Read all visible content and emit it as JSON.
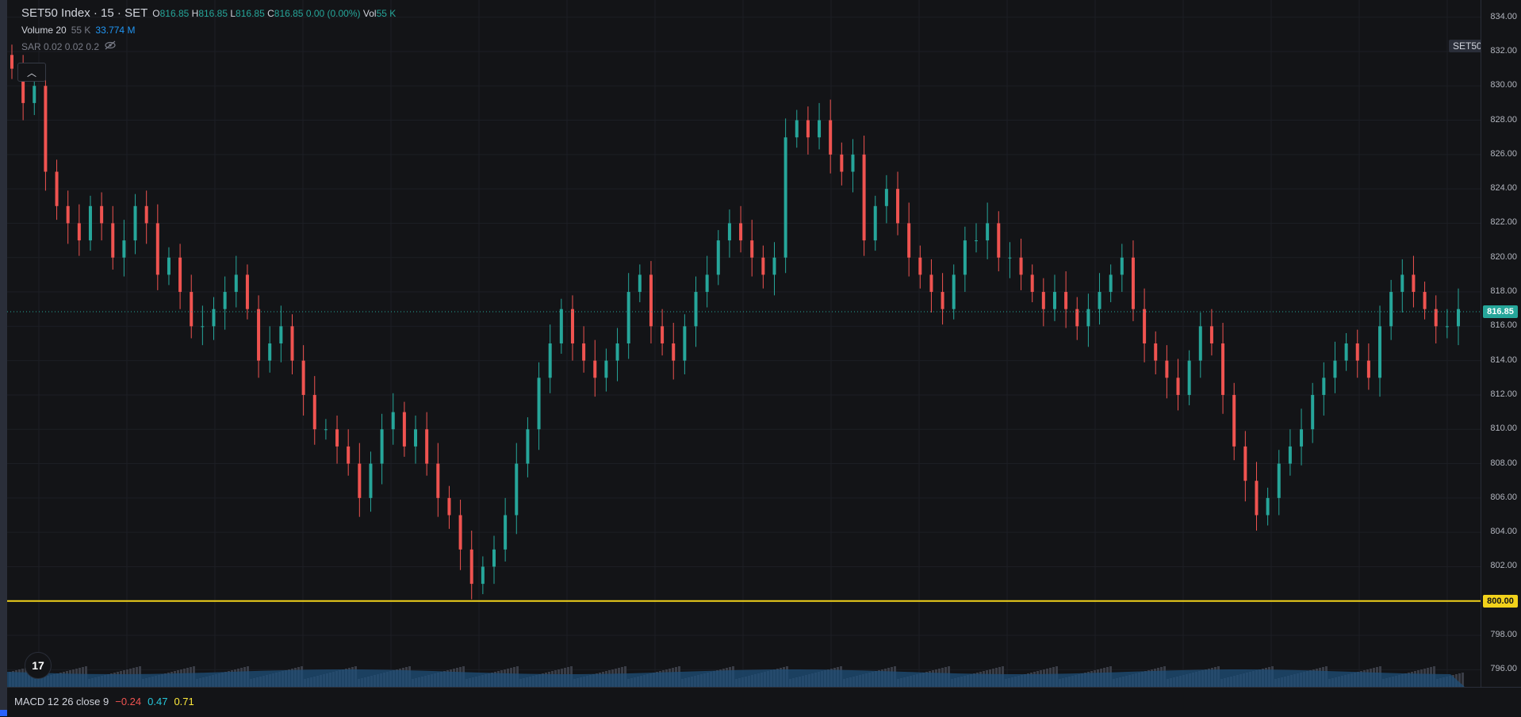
{
  "legend": {
    "title": "SET50 Index · 15 · SET",
    "o_label": "O",
    "o_value": "816.85",
    "h_label": "H",
    "h_value": "816.85",
    "l_label": "L",
    "l_value": "816.85",
    "c_label": "C",
    "c_value": "816.85",
    "change": "0.00 (0.00%)",
    "vol_label": "Vol",
    "vol_value": "55 K",
    "volume_name": "Volume 20",
    "volume_value1": "55 K",
    "volume_value2": "33.774 M",
    "sar_name": "SAR 0.02 0.02 0.2"
  },
  "symbol_badge": "SET50",
  "collapse_icon": "chevron-up-icon",
  "logo_text": "17",
  "price_axis": {
    "ticks": [
      "834.00",
      "832.00",
      "830.00",
      "828.00",
      "826.00",
      "824.00",
      "822.00",
      "820.00",
      "818.00",
      "816.00",
      "814.00",
      "812.00",
      "810.00",
      "808.00",
      "806.00",
      "804.00",
      "802.00",
      "800.00",
      "798.00",
      "796.00"
    ],
    "current_price": "816.85",
    "line_price": "800.00"
  },
  "macd": {
    "name": "MACD 12 26 close 9",
    "v1": "−0.24",
    "v2": "0.47",
    "v3": "0.71"
  },
  "colors": {
    "up": "#26a69a",
    "down": "#ef5350",
    "horizontal_line": "#f2d21b",
    "volume_ma": "#2962ff"
  },
  "chart_data": {
    "type": "candlestick",
    "ylim": [
      795,
      835
    ],
    "current_price": 816.85,
    "horizontal_line": 800.0,
    "close_series": [
      831,
      829,
      830,
      825,
      823,
      822,
      821,
      823,
      822,
      820,
      821,
      823,
      822,
      819,
      820,
      818,
      816,
      816,
      817,
      818,
      819,
      817,
      814,
      815,
      816,
      814,
      812,
      810,
      810,
      809,
      808,
      806,
      808,
      810,
      811,
      809,
      810,
      808,
      806,
      805,
      803,
      801,
      802,
      803,
      805,
      808,
      810,
      813,
      815,
      817,
      815,
      814,
      813,
      814,
      815,
      818,
      819,
      816,
      815,
      814,
      816,
      818,
      819,
      821,
      822,
      821,
      820,
      819,
      820,
      827,
      828,
      827,
      828,
      826,
      825,
      826,
      821,
      823,
      824,
      822,
      820,
      819,
      818,
      817,
      819,
      821,
      821,
      822,
      820,
      820,
      819,
      818,
      817,
      818,
      817,
      816,
      817,
      818,
      819,
      820,
      817,
      815,
      814,
      813,
      812,
      814,
      816,
      815,
      812,
      809,
      807,
      805,
      806,
      808,
      809,
      810,
      812,
      813,
      814,
      815,
      814,
      813,
      816,
      818,
      819,
      818,
      817,
      816,
      816,
      817
    ]
  }
}
